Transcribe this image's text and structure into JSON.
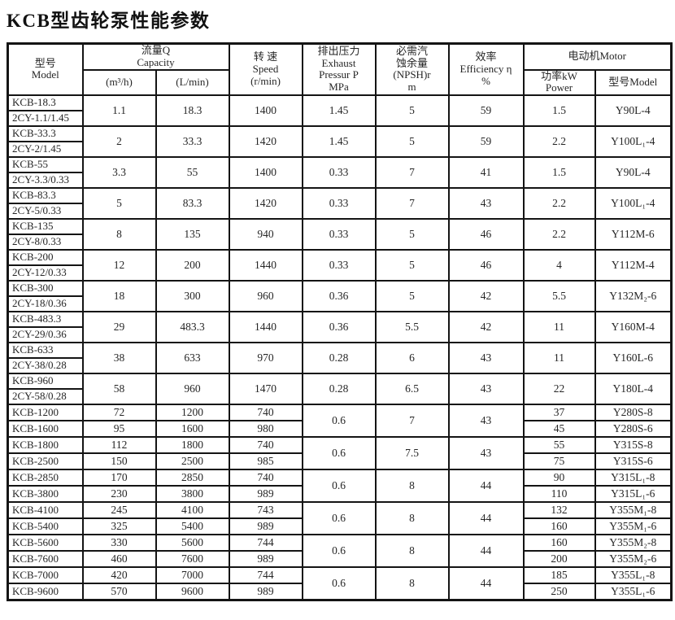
{
  "title": "KCB型齿轮泵性能参数",
  "table": {
    "header": {
      "model": "型号\nModel",
      "capacity": "流量Q\nCapacity",
      "unit_m3h": "(m³/h)",
      "unit_lmin": "(L/min)",
      "speed": "转 速\nSpeed\n(r/min)",
      "pressure": "排出压力\nExhaust\nPressur P\nMPa",
      "npsh": "必需汽\n蚀余量\n(NPSH)r\nm",
      "efficiency": "效率\nEfficiency η\n%",
      "motor": "电动机Motor",
      "power": "功率kW\nPower",
      "motor_model": "型号Model"
    },
    "dual_rows": [
      {
        "model1": "KCB-18.3",
        "model2": "2CY-1.1/1.45",
        "m3h": "1.1",
        "lmin": "18.3",
        "speed": "1400",
        "pressure": "1.45",
        "npsh": "5",
        "eff": "59",
        "power": "1.5",
        "motor": "Y90L-4"
      },
      {
        "model1": "KCB-33.3",
        "model2": "2CY-2/1.45",
        "m3h": "2",
        "lmin": "33.3",
        "speed": "1420",
        "pressure": "1.45",
        "npsh": "5",
        "eff": "59",
        "power": "2.2",
        "motor": "Y100L₁-4"
      },
      {
        "model1": "KCB-55",
        "model2": "2CY-3.3/0.33",
        "m3h": "3.3",
        "lmin": "55",
        "speed": "1400",
        "pressure": "0.33",
        "npsh": "7",
        "eff": "41",
        "power": "1.5",
        "motor": "Y90L-4"
      },
      {
        "model1": "KCB-83.3",
        "model2": "2CY-5/0.33",
        "m3h": "5",
        "lmin": "83.3",
        "speed": "1420",
        "pressure": "0.33",
        "npsh": "7",
        "eff": "43",
        "power": "2.2",
        "motor": "Y100L₁-4"
      },
      {
        "model1": "KCB-135",
        "model2": "2CY-8/0.33",
        "m3h": "8",
        "lmin": "135",
        "speed": "940",
        "pressure": "0.33",
        "npsh": "5",
        "eff": "46",
        "power": "2.2",
        "motor": "Y112M-6"
      },
      {
        "model1": "KCB-200",
        "model2": "2CY-12/0.33",
        "m3h": "12",
        "lmin": "200",
        "speed": "1440",
        "pressure": "0.33",
        "npsh": "5",
        "eff": "46",
        "power": "4",
        "motor": "Y112M-4"
      },
      {
        "model1": "KCB-300",
        "model2": "2CY-18/0.36",
        "m3h": "18",
        "lmin": "300",
        "speed": "960",
        "pressure": "0.36",
        "npsh": "5",
        "eff": "42",
        "power": "5.5",
        "motor": "Y132M₂-6"
      },
      {
        "model1": "KCB-483.3",
        "model2": "2CY-29/0.36",
        "m3h": "29",
        "lmin": "483.3",
        "speed": "1440",
        "pressure": "0.36",
        "npsh": "5.5",
        "eff": "42",
        "power": "11",
        "motor": "Y160M-4"
      },
      {
        "model1": "KCB-633",
        "model2": "2CY-38/0.28",
        "m3h": "38",
        "lmin": "633",
        "speed": "970",
        "pressure": "0.28",
        "npsh": "6",
        "eff": "43",
        "power": "11",
        "motor": "Y160L-6"
      },
      {
        "model1": "KCB-960",
        "model2": "2CY-58/0.28",
        "m3h": "58",
        "lmin": "960",
        "speed": "1470",
        "pressure": "0.28",
        "npsh": "6.5",
        "eff": "43",
        "power": "22",
        "motor": "Y180L-4"
      }
    ],
    "single_groups": [
      {
        "pressure": "0.6",
        "npsh": "7",
        "eff": "43",
        "rows": [
          {
            "model": "KCB-1200",
            "m3h": "72",
            "lmin": "1200",
            "speed": "740",
            "power": "37",
            "motor": "Y280S-8"
          },
          {
            "model": "KCB-1600",
            "m3h": "95",
            "lmin": "1600",
            "speed": "980",
            "power": "45",
            "motor": "Y280S-6"
          }
        ]
      },
      {
        "pressure": "0.6",
        "npsh": "7.5",
        "eff": "43",
        "rows": [
          {
            "model": "KCB-1800",
            "m3h": "112",
            "lmin": "1800",
            "speed": "740",
            "power": "55",
            "motor": "Y315S-8"
          },
          {
            "model": "KCB-2500",
            "m3h": "150",
            "lmin": "2500",
            "speed": "985",
            "power": "75",
            "motor": "Y315S-6"
          }
        ]
      },
      {
        "pressure": "0.6",
        "npsh": "8",
        "eff": "44",
        "rows": [
          {
            "model": "KCB-2850",
            "m3h": "170",
            "lmin": "2850",
            "speed": "740",
            "power": "90",
            "motor": "Y315L₁-8"
          },
          {
            "model": "KCB-3800",
            "m3h": "230",
            "lmin": "3800",
            "speed": "989",
            "power": "110",
            "motor": "Y315L₁-6"
          }
        ]
      },
      {
        "pressure": "0.6",
        "npsh": "8",
        "eff": "44",
        "rows": [
          {
            "model": "KCB-4100",
            "m3h": "245",
            "lmin": "4100",
            "speed": "743",
            "power": "132",
            "motor": "Y355M₁-8"
          },
          {
            "model": "KCB-5400",
            "m3h": "325",
            "lmin": "5400",
            "speed": "989",
            "power": "160",
            "motor": "Y355M₁-6"
          }
        ]
      },
      {
        "pressure": "0.6",
        "npsh": "8",
        "eff": "44",
        "rows": [
          {
            "model": "KCB-5600",
            "m3h": "330",
            "lmin": "5600",
            "speed": "744",
            "power": "160",
            "motor": "Y355M₂-8"
          },
          {
            "model": "KCB-7600",
            "m3h": "460",
            "lmin": "7600",
            "speed": "989",
            "power": "200",
            "motor": "Y355M₂-6"
          }
        ]
      },
      {
        "pressure": "0.6",
        "npsh": "8",
        "eff": "44",
        "rows": [
          {
            "model": "KCB-7000",
            "m3h": "420",
            "lmin": "7000",
            "speed": "744",
            "power": "185",
            "motor": "Y355L₁-8"
          },
          {
            "model": "KCB-9600",
            "m3h": "570",
            "lmin": "9600",
            "speed": "989",
            "power": "250",
            "motor": "Y355L₁-6"
          }
        ]
      }
    ]
  }
}
